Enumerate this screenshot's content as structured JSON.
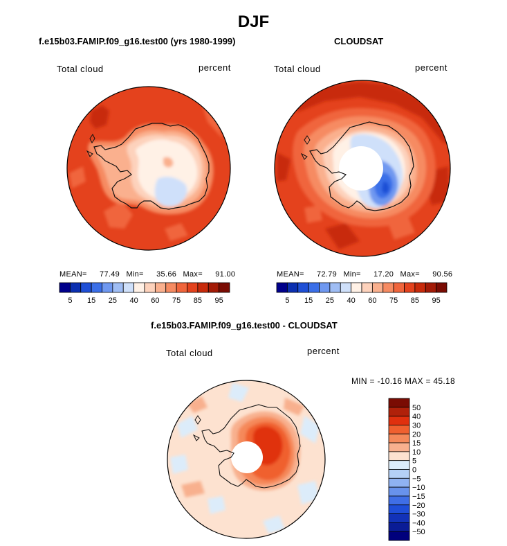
{
  "figure_title": "DJF",
  "panels": [
    {
      "title": "f.e15b03.FAMIP.f09_g16.test00 (yrs 1980-1999)",
      "left_label": "Total cloud",
      "right_label": "percent",
      "stats": {
        "mean_label": "MEAN=",
        "mean": "77.49",
        "min_label": "Min=",
        "min": "35.66",
        "max_label": "Max=",
        "max": "91.00"
      }
    },
    {
      "title": "CLOUDSAT",
      "left_label": "Total cloud",
      "right_label": "percent",
      "stats": {
        "mean_label": "MEAN=",
        "mean": "72.79",
        "min_label": "Min=",
        "min": "17.20",
        "max_label": "Max=",
        "max": "90.56"
      }
    },
    {
      "title": "f.e15b03.FAMIP.f09_g16.test00 - CLOUDSAT",
      "left_label": "Total cloud",
      "right_label": "percent",
      "stats_text": "MIN = -10.16 MAX =  45.18"
    }
  ],
  "chart_data": [
    {
      "type": "heatmap",
      "projection": "south polar stereographic",
      "title": "f.e15b03.FAMIP.f09_g16.test00 (yrs 1980-1999)",
      "variable": "Total cloud",
      "units": "percent",
      "mean": 77.49,
      "min": 35.66,
      "max": 91.0,
      "colorbar": {
        "colors": [
          "#00008b",
          "#0b2fb0",
          "#1f4fd6",
          "#3b6fe8",
          "#6f98f0",
          "#9fbdf4",
          "#cfe0fa",
          "#fff1e6",
          "#fdd2bc",
          "#fab08e",
          "#f68b62",
          "#f0653c",
          "#e4421d",
          "#c82a0b",
          "#a31a06",
          "#7a0c03"
        ],
        "tick_labels": [
          "5",
          "15",
          "25",
          "40",
          "60",
          "75",
          "85",
          "95"
        ]
      }
    },
    {
      "type": "heatmap",
      "projection": "south polar stereographic",
      "title": "CLOUDSAT",
      "variable": "Total cloud",
      "units": "percent",
      "mean": 72.79,
      "min": 17.2,
      "max": 90.56,
      "colorbar": {
        "colors": [
          "#00008b",
          "#0b2fb0",
          "#1f4fd6",
          "#3b6fe8",
          "#6f98f0",
          "#9fbdf4",
          "#cfe0fa",
          "#fff1e6",
          "#fdd2bc",
          "#fab08e",
          "#f68b62",
          "#f0653c",
          "#e4421d",
          "#c82a0b",
          "#a31a06",
          "#7a0c03"
        ],
        "tick_labels": [
          "5",
          "15",
          "25",
          "40",
          "60",
          "75",
          "85",
          "95"
        ]
      }
    },
    {
      "type": "heatmap",
      "projection": "south polar stereographic",
      "title": "f.e15b03.FAMIP.f09_g16.test00 - CLOUDSAT",
      "variable": "Total cloud",
      "units": "percent",
      "min": -10.16,
      "max": 45.18,
      "colorbar": {
        "orientation": "vertical",
        "colors": [
          "#7a0c03",
          "#b0210a",
          "#e0300e",
          "#f0602f",
          "#f5895a",
          "#f8b08e",
          "#fde2d0",
          "#dcecfa",
          "#b4d0f7",
          "#8fb2f2",
          "#6892ec",
          "#3f6ee6",
          "#1f4ed8",
          "#1232b8",
          "#0a1c96",
          "#00007c"
        ],
        "tick_labels": [
          "50",
          "40",
          "30",
          "20",
          "15",
          "10",
          "5",
          "0",
          "-5",
          "-10",
          "-15",
          "-20",
          "-30",
          "-40",
          "-50"
        ]
      }
    }
  ]
}
